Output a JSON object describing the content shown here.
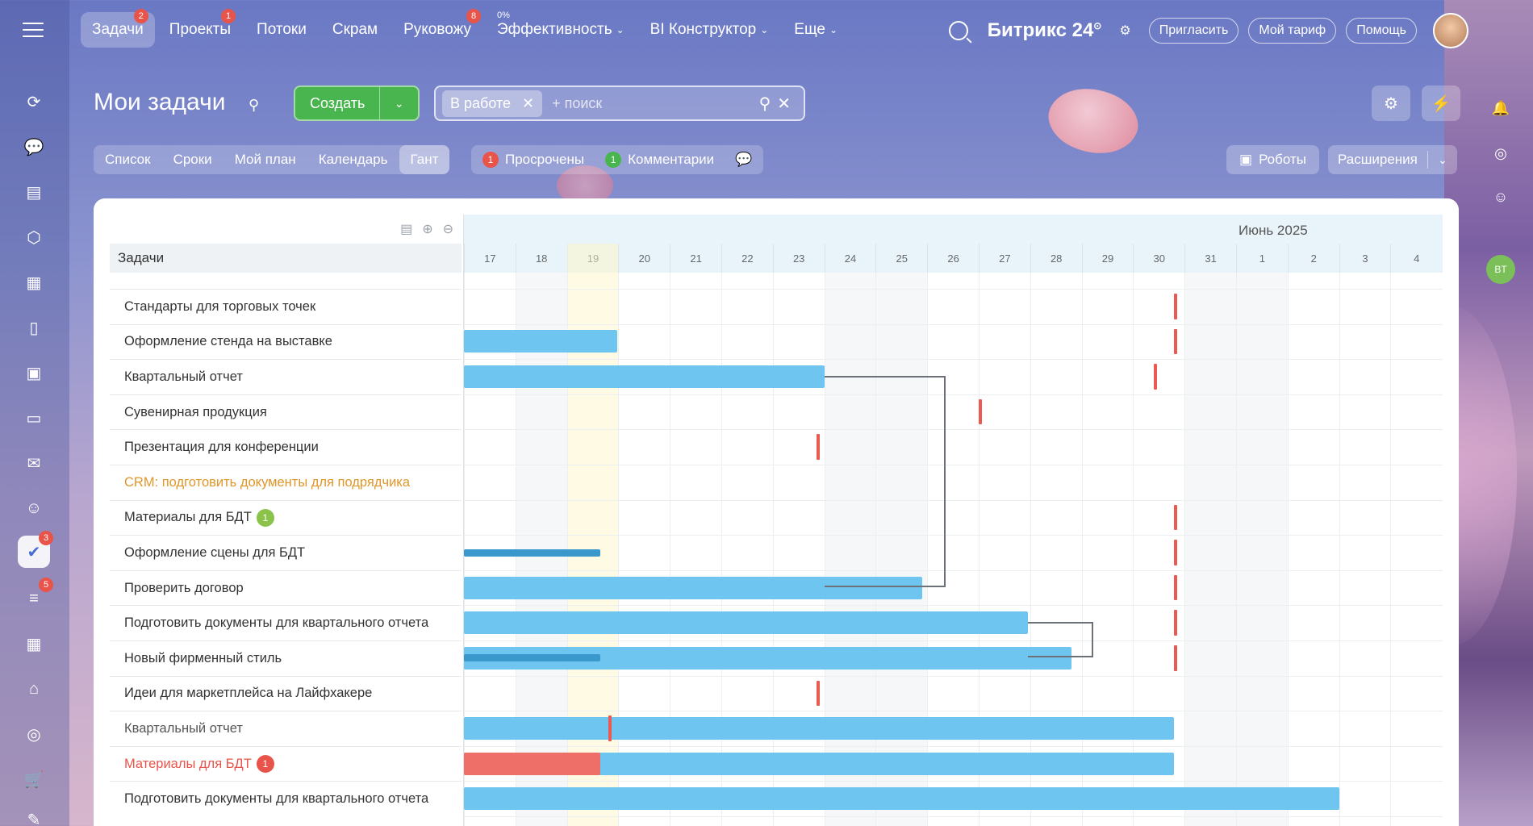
{
  "topnav": {
    "items": [
      {
        "label": "Задачи",
        "badge": "2",
        "active": true
      },
      {
        "label": "Проекты",
        "badge": "1"
      },
      {
        "label": "Потоки"
      },
      {
        "label": "Скрам"
      },
      {
        "label": "Руковожу",
        "badge": "8"
      },
      {
        "label": "Эффективность",
        "pct": "0%",
        "dropdown": true
      },
      {
        "label": "BI Конструктор",
        "dropdown": true
      },
      {
        "label": "Еще",
        "dropdown": true
      }
    ],
    "brand": "Битрикс 24",
    "invite": "Пригласить",
    "tariff": "Мой тариф",
    "help": "Помощь"
  },
  "sidebar": {
    "tasks_count": "3",
    "feed_count": "5"
  },
  "page": {
    "title": "Мои задачи",
    "create_label": "Создать",
    "filter_chip": "В работе",
    "search_placeholder": "+ поиск"
  },
  "views": [
    "Список",
    "Сроки",
    "Мой план",
    "Календарь",
    "Гант"
  ],
  "counters": [
    {
      "count": "1",
      "label": "Просрочены",
      "color": "#e9544a"
    },
    {
      "count": "1",
      "label": "Комментарии",
      "color": "#49b54f"
    }
  ],
  "robots_label": "Роботы",
  "extensions_label": "Расширения",
  "gantt": {
    "column_header": "Задачи",
    "month": "Июнь 2025",
    "days": [
      "17",
      "18",
      "19",
      "20",
      "21",
      "22",
      "23",
      "24",
      "25",
      "26",
      "27",
      "28",
      "29",
      "30",
      "31",
      "1",
      "2",
      "3",
      "4"
    ],
    "tasks": [
      {
        "name": "Стандарты для торговых точек"
      },
      {
        "name": "Оформление стенда на выставке"
      },
      {
        "name": "Квартальный отчет"
      },
      {
        "name": "Сувенирная продукция"
      },
      {
        "name": "Презентация для конференции"
      },
      {
        "name": "CRM: подготовить документы для подрядчика",
        "style": "orange"
      },
      {
        "name": "Материалы для БДТ",
        "badge": "1",
        "badge_color": "#8bc34a"
      },
      {
        "name": "Оформление сцены для БДТ"
      },
      {
        "name": "Проверить договор"
      },
      {
        "name": "Подготовить документы для квартального отчета"
      },
      {
        "name": "Новый фирменный стиль"
      },
      {
        "name": "Идеи для маркетплейса на Лайфхакере"
      },
      {
        "name": "Квартальный отчет",
        "style": "gray"
      },
      {
        "name": "Материалы для БДТ",
        "style": "red",
        "badge": "1",
        "badge_color": "#e9544a"
      },
      {
        "name": "Подготовить документы для квартального отчета"
      }
    ]
  }
}
